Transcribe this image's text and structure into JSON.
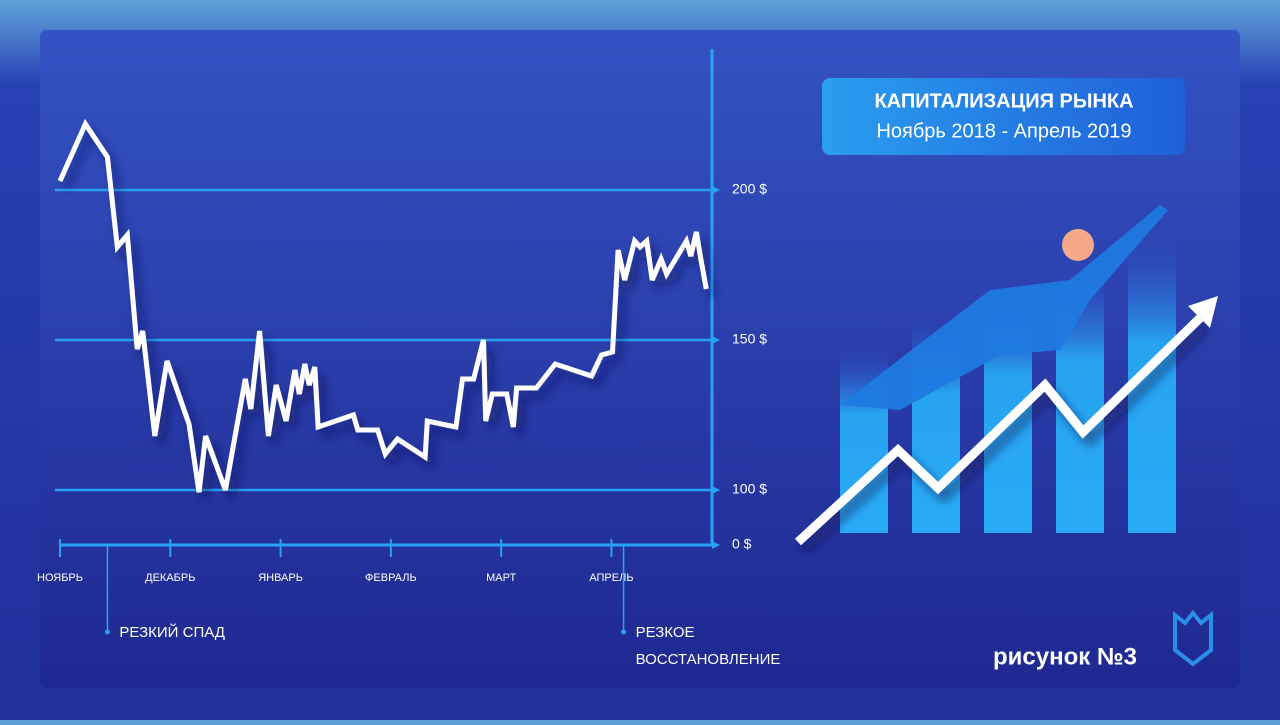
{
  "chart_data": {
    "type": "line",
    "title": "КАПИТАЛИЗАЦИЯ РЫНКА",
    "subtitle": "Ноябрь 2018 - Апрель 2019",
    "caption": "рисунок №3",
    "categories": [
      "НОЯБРЬ",
      "ДЕКАБРЬ",
      "ЯНВАРЬ",
      "ФЕВРАЛЬ",
      "МАРТ",
      "АПРЕЛЬ"
    ],
    "xlim": [
      0,
      5.9
    ],
    "xticks": [
      {
        "value": 0,
        "label": "НОЯБРЬ"
      },
      {
        "value": 1,
        "label": "ДЕКАБРЬ"
      },
      {
        "value": 2,
        "label": "ЯНВАРЬ"
      },
      {
        "value": 3,
        "label": "ФЕВРАЛЬ"
      },
      {
        "value": 4,
        "label": "МАРТ"
      },
      {
        "value": 5,
        "label": "АПРЕЛЬ"
      }
    ],
    "ylim": [
      0,
      247
    ],
    "yticks": [
      {
        "value": 0,
        "label": "0 $"
      },
      {
        "value": 100,
        "label": "100 $"
      },
      {
        "value": 150,
        "label": "150 $"
      },
      {
        "value": 200,
        "label": "200 $"
      }
    ],
    "grid": true,
    "x": [
      0,
      0.23,
      0.43,
      0.52,
      0.61,
      0.7,
      0.75,
      0.86,
      0.97,
      1.17,
      1.26,
      1.32,
      1.5,
      1.68,
      1.73,
      1.81,
      1.89,
      1.96,
      2.05,
      2.13,
      2.17,
      2.22,
      2.26,
      2.31,
      2.34,
      2.66,
      2.7,
      2.88,
      2.95,
      3.06,
      3.31,
      3.33,
      3.59,
      3.65,
      3.75,
      3.84,
      3.86,
      3.92,
      4.05,
      4.11,
      4.14,
      4.32,
      4.49,
      4.82,
      4.91,
      5.01,
      5.06,
      5.12,
      5.21,
      5.26,
      5.32,
      5.37,
      5.45,
      5.5,
      5.68,
      5.72,
      5.77,
      5.81,
      5.86
    ],
    "series": [
      {
        "name": "Капитализация",
        "color": "#ffffff",
        "values": [
          203,
          222,
          211,
          181,
          185,
          147,
          153,
          118,
          143,
          122,
          96,
          118,
          100,
          137,
          127,
          153,
          118,
          135,
          123,
          140,
          132,
          142,
          135,
          141,
          121,
          125,
          120,
          120,
          112,
          117,
          111,
          123,
          121,
          137,
          137,
          150,
          123,
          132,
          132,
          121,
          134,
          134,
          142,
          138,
          145,
          146,
          180,
          170,
          183,
          181,
          183,
          170,
          177,
          172,
          183,
          178,
          186,
          177,
          167
        ]
      }
    ],
    "annotations": [
      {
        "x": 0.43,
        "text": "РЕЗКИЙ СПАД"
      },
      {
        "x": 5.11,
        "text": "РЕЗКОЕ ВОССТАНОВЛЕНИЕ"
      }
    ]
  }
}
